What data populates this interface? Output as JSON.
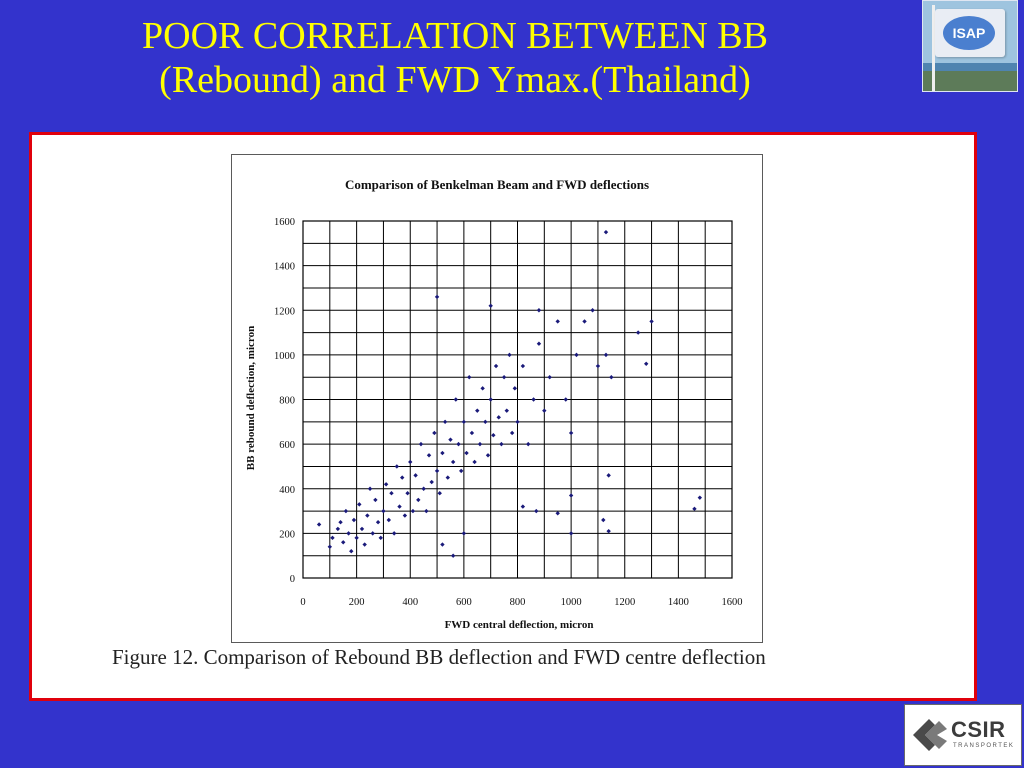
{
  "slide": {
    "title_line1": "POOR CORRELATION BETWEEN BB",
    "title_line2": "(Rebound) and FWD Ymax.(Thailand)",
    "caption": "Figure 12.  Comparison of Rebound BB deflection and FWD centre deflection"
  },
  "logos": {
    "isap_text": "ISAP",
    "csir_text": "CSIR",
    "csir_sub": "TRANSPORTEK"
  },
  "colors": {
    "background": "#3333cc",
    "title": "#ffff00",
    "frame_border": "#e0000c",
    "points": "#1a1a7a"
  },
  "chart_data": {
    "type": "scatter",
    "title": "Comparison of Benkelman Beam and FWD deflections",
    "xlabel": "FWD central deflection, micron",
    "ylabel": "BB rebound deflection, micron",
    "xlim": [
      0,
      1600
    ],
    "ylim": [
      0,
      1600
    ],
    "xticks": [
      0,
      200,
      400,
      600,
      800,
      1000,
      1200,
      1400,
      1600
    ],
    "yticks": [
      0,
      200,
      400,
      600,
      800,
      1000,
      1200,
      1400,
      1600
    ],
    "grid": true,
    "points": [
      [
        60,
        240
      ],
      [
        100,
        140
      ],
      [
        110,
        180
      ],
      [
        130,
        220
      ],
      [
        140,
        250
      ],
      [
        150,
        160
      ],
      [
        160,
        300
      ],
      [
        170,
        200
      ],
      [
        180,
        120
      ],
      [
        190,
        260
      ],
      [
        200,
        180
      ],
      [
        210,
        330
      ],
      [
        220,
        220
      ],
      [
        230,
        150
      ],
      [
        240,
        280
      ],
      [
        250,
        400
      ],
      [
        260,
        200
      ],
      [
        270,
        350
      ],
      [
        280,
        250
      ],
      [
        290,
        180
      ],
      [
        300,
        300
      ],
      [
        310,
        420
      ],
      [
        320,
        260
      ],
      [
        330,
        380
      ],
      [
        340,
        200
      ],
      [
        350,
        500
      ],
      [
        360,
        320
      ],
      [
        370,
        450
      ],
      [
        380,
        280
      ],
      [
        390,
        380
      ],
      [
        400,
        520
      ],
      [
        410,
        300
      ],
      [
        420,
        460
      ],
      [
        430,
        350
      ],
      [
        440,
        600
      ],
      [
        450,
        400
      ],
      [
        460,
        300
      ],
      [
        470,
        550
      ],
      [
        480,
        430
      ],
      [
        490,
        650
      ],
      [
        500,
        480
      ],
      [
        510,
        380
      ],
      [
        520,
        560
      ],
      [
        530,
        700
      ],
      [
        540,
        450
      ],
      [
        550,
        620
      ],
      [
        560,
        520
      ],
      [
        570,
        800
      ],
      [
        580,
        600
      ],
      [
        590,
        480
      ],
      [
        600,
        700
      ],
      [
        610,
        560
      ],
      [
        620,
        900
      ],
      [
        630,
        650
      ],
      [
        640,
        520
      ],
      [
        650,
        750
      ],
      [
        660,
        600
      ],
      [
        670,
        850
      ],
      [
        680,
        700
      ],
      [
        690,
        550
      ],
      [
        700,
        800
      ],
      [
        710,
        640
      ],
      [
        720,
        950
      ],
      [
        730,
        720
      ],
      [
        740,
        600
      ],
      [
        750,
        900
      ],
      [
        760,
        750
      ],
      [
        770,
        1000
      ],
      [
        780,
        650
      ],
      [
        790,
        850
      ],
      [
        800,
        700
      ],
      [
        820,
        950
      ],
      [
        840,
        600
      ],
      [
        860,
        800
      ],
      [
        880,
        1050
      ],
      [
        900,
        750
      ],
      [
        920,
        900
      ],
      [
        950,
        1150
      ],
      [
        980,
        800
      ],
      [
        1000,
        650
      ],
      [
        1020,
        1000
      ],
      [
        1050,
        1150
      ],
      [
        1080,
        1200
      ],
      [
        1100,
        950
      ],
      [
        1130,
        1000
      ],
      [
        1150,
        900
      ],
      [
        1300,
        1150
      ],
      [
        1280,
        960
      ],
      [
        1250,
        1100
      ],
      [
        1130,
        1550
      ],
      [
        1480,
        360
      ],
      [
        1460,
        310
      ],
      [
        1140,
        460
      ],
      [
        1120,
        260
      ],
      [
        1140,
        210
      ],
      [
        1000,
        200
      ],
      [
        950,
        290
      ],
      [
        500,
        1260
      ],
      [
        700,
        1220
      ],
      [
        880,
        1200
      ],
      [
        1000,
        370
      ],
      [
        820,
        320
      ],
      [
        870,
        300
      ],
      [
        560,
        100
      ],
      [
        520,
        150
      ],
      [
        600,
        200
      ]
    ]
  }
}
